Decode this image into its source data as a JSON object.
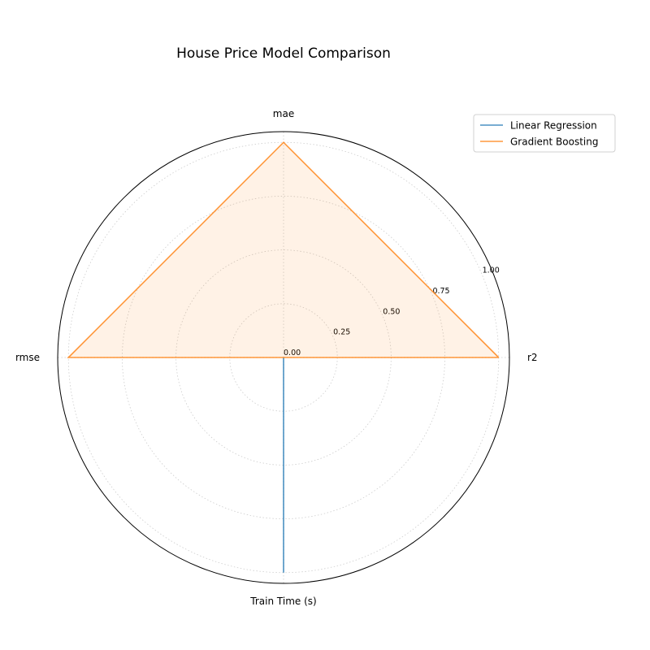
{
  "chart_data": {
    "type": "radar",
    "title": "House Price Model Comparison",
    "axes": [
      "r2",
      "mae",
      "rmse",
      "Train Time (s)"
    ],
    "radial_ticks": [
      0.0,
      0.25,
      0.5,
      0.75,
      1.0
    ],
    "radial_tick_labels": [
      "0.00",
      "0.25",
      "0.50",
      "0.75",
      "1.00"
    ],
    "rlim": [
      0,
      1.05
    ],
    "grid": true,
    "legend_position": "top-right",
    "series": [
      {
        "name": "Linear Regression",
        "color": "#1f77b4",
        "values": [
          0.0,
          0.0,
          0.0,
          1.0
        ],
        "filled": false
      },
      {
        "name": "Gradient Boosting",
        "color": "#ff7f0e",
        "values": [
          1.0,
          1.0,
          1.0,
          0.0
        ],
        "filled": true
      }
    ]
  }
}
